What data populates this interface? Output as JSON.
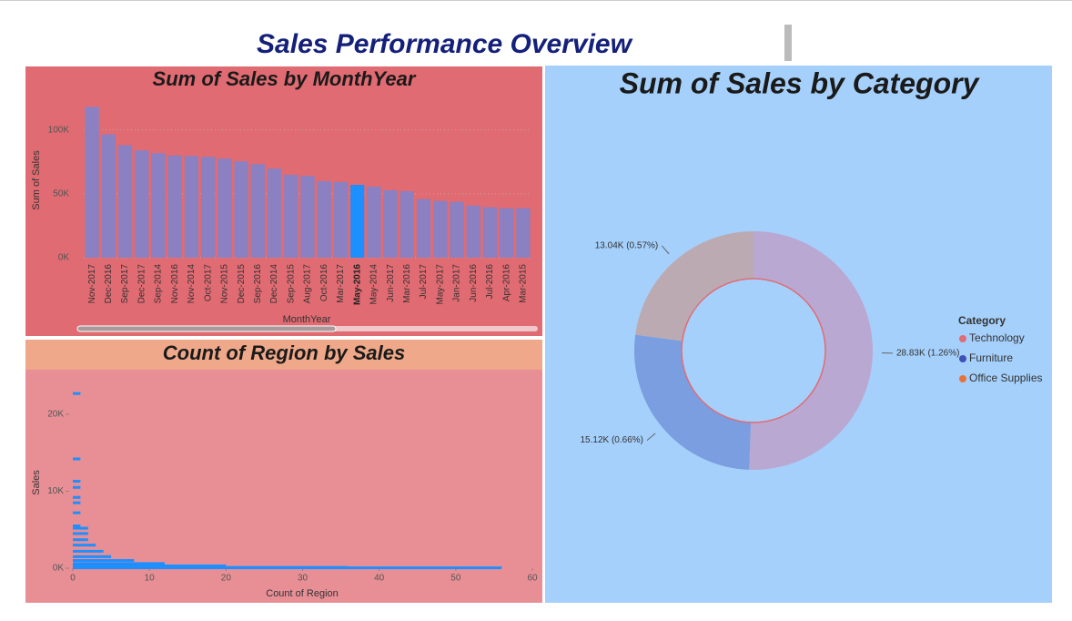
{
  "title": "Sales Performance Overview",
  "chart_data": [
    {
      "type": "bar",
      "title": "Sum of Sales by MonthYear",
      "x_label": "MonthYear",
      "y_label": "Sum of Sales",
      "categories": [
        "Nov-2017",
        "Dec-2016",
        "Sep-2017",
        "Dec-2017",
        "Sep-2014",
        "Nov-2016",
        "Nov-2014",
        "Oct-2017",
        "Nov-2015",
        "Dec-2015",
        "Sep-2016",
        "Dec-2014",
        "Sep-2015",
        "Aug-2017",
        "Oct-2016",
        "Mar-2017",
        "May-2016",
        "May-2014",
        "Jun-2017",
        "Mar-2016",
        "Jul-2017",
        "May-2017",
        "Jan-2017",
        "Jun-2016",
        "Jul-2016",
        "Apr-2016",
        "Mar-2015"
      ],
      "values": [
        118000,
        96500,
        88000,
        84000,
        81800,
        80000,
        79600,
        78900,
        77500,
        75400,
        73200,
        69700,
        64800,
        64000,
        59900,
        59200,
        57000,
        55600,
        52800,
        52000,
        45800,
        44400,
        43700,
        40800,
        39400,
        38700,
        38700
      ],
      "color": "#8a80c2",
      "highlight_category": "May-2016",
      "highlight_color": "#1e8fff",
      "ylim": [
        0,
        120000
      ],
      "yticks": [
        {
          "value": 0,
          "label": "0K"
        },
        {
          "value": 50000,
          "label": "50K"
        },
        {
          "value": 100000,
          "label": "100K"
        }
      ],
      "grid": true
    },
    {
      "type": "hbar",
      "title": "Count of Region by Sales",
      "x_label": "Count of Region",
      "y_label": "Sales",
      "x": [
        1,
        1,
        1,
        1,
        1,
        1,
        1,
        1,
        2,
        2,
        2,
        3,
        4,
        5,
        8,
        12,
        20,
        36,
        56
      ],
      "values": [
        22700,
        14200,
        11300,
        10500,
        9200,
        8500,
        7200,
        5500,
        5200,
        4500,
        3700,
        3000,
        2200,
        1500,
        1000,
        600,
        300,
        100,
        50
      ],
      "color": "#1e8fff",
      "xlim": [
        0,
        60
      ],
      "xticks": [
        0,
        10,
        20,
        30,
        40,
        50,
        60
      ],
      "ylim": [
        0,
        24000
      ],
      "yticks": [
        {
          "value": 0,
          "label": "0K"
        },
        {
          "value": 10000,
          "label": "10K"
        },
        {
          "value": 20000,
          "label": "20K"
        }
      ]
    },
    {
      "type": "donut",
      "title": "Sum of Sales by Category",
      "legend_title": "Category",
      "categories": [
        "Technology",
        "Furniture",
        "Office Supplies"
      ],
      "values": [
        28830,
        15120,
        13040
      ],
      "value_labels": [
        "28.83K (1.26%)",
        "15.12K (0.66%)",
        "13.04K (0.57%)"
      ],
      "colors": [
        "#e06c75",
        "#3f51b5",
        "#e8733a"
      ],
      "slice_colors": [
        "#b9a8d2",
        "#7b9ee0",
        "#bcaab3"
      ],
      "legend": "right"
    }
  ]
}
